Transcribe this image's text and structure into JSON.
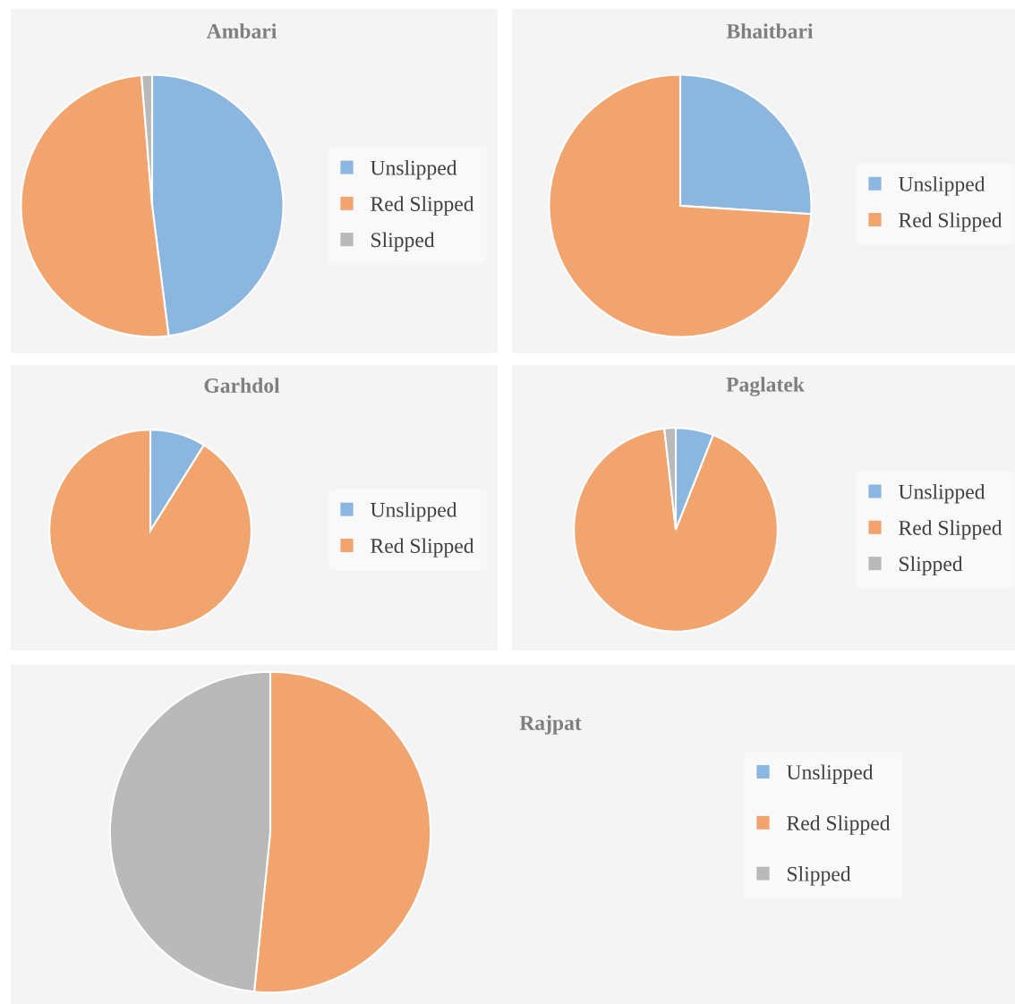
{
  "chart_data": [
    {
      "type": "pie",
      "title": "Ambari",
      "categories": [
        "Unslipped",
        "Red Slipped",
        "Slipped"
      ],
      "values": [
        48,
        50.7,
        1.3
      ],
      "colors": [
        "#8ab6e0",
        "#f1a46e",
        "#b9b9b9"
      ],
      "legend": "right"
    },
    {
      "type": "pie",
      "title": "Bhaitbari",
      "categories": [
        "Unslipped",
        "Red Slipped"
      ],
      "values": [
        26,
        74
      ],
      "colors": [
        "#8ab6e0",
        "#f1a46e"
      ],
      "legend": "right"
    },
    {
      "type": "pie",
      "title": "Garhdol",
      "categories": [
        "Unslipped",
        "Red Slipped"
      ],
      "values": [
        8.9,
        91.1
      ],
      "colors": [
        "#8ab6e0",
        "#f1a46e"
      ],
      "legend": "right"
    },
    {
      "type": "pie",
      "title": "Paglatek",
      "categories": [
        "Unslipped",
        "Red Slipped",
        "Slipped"
      ],
      "values": [
        6,
        92.2,
        1.8
      ],
      "colors": [
        "#8ab6e0",
        "#f1a46e",
        "#b9b9b9"
      ],
      "legend": "right"
    },
    {
      "type": "pie",
      "title": "Rajpat",
      "categories": [
        "Unslipped",
        "Red Slipped",
        "Slipped"
      ],
      "values": [
        0,
        51.6,
        48.4
      ],
      "colors": [
        "#8ab6e0",
        "#f1a46e",
        "#b9b9b9"
      ],
      "legend": "right"
    }
  ]
}
